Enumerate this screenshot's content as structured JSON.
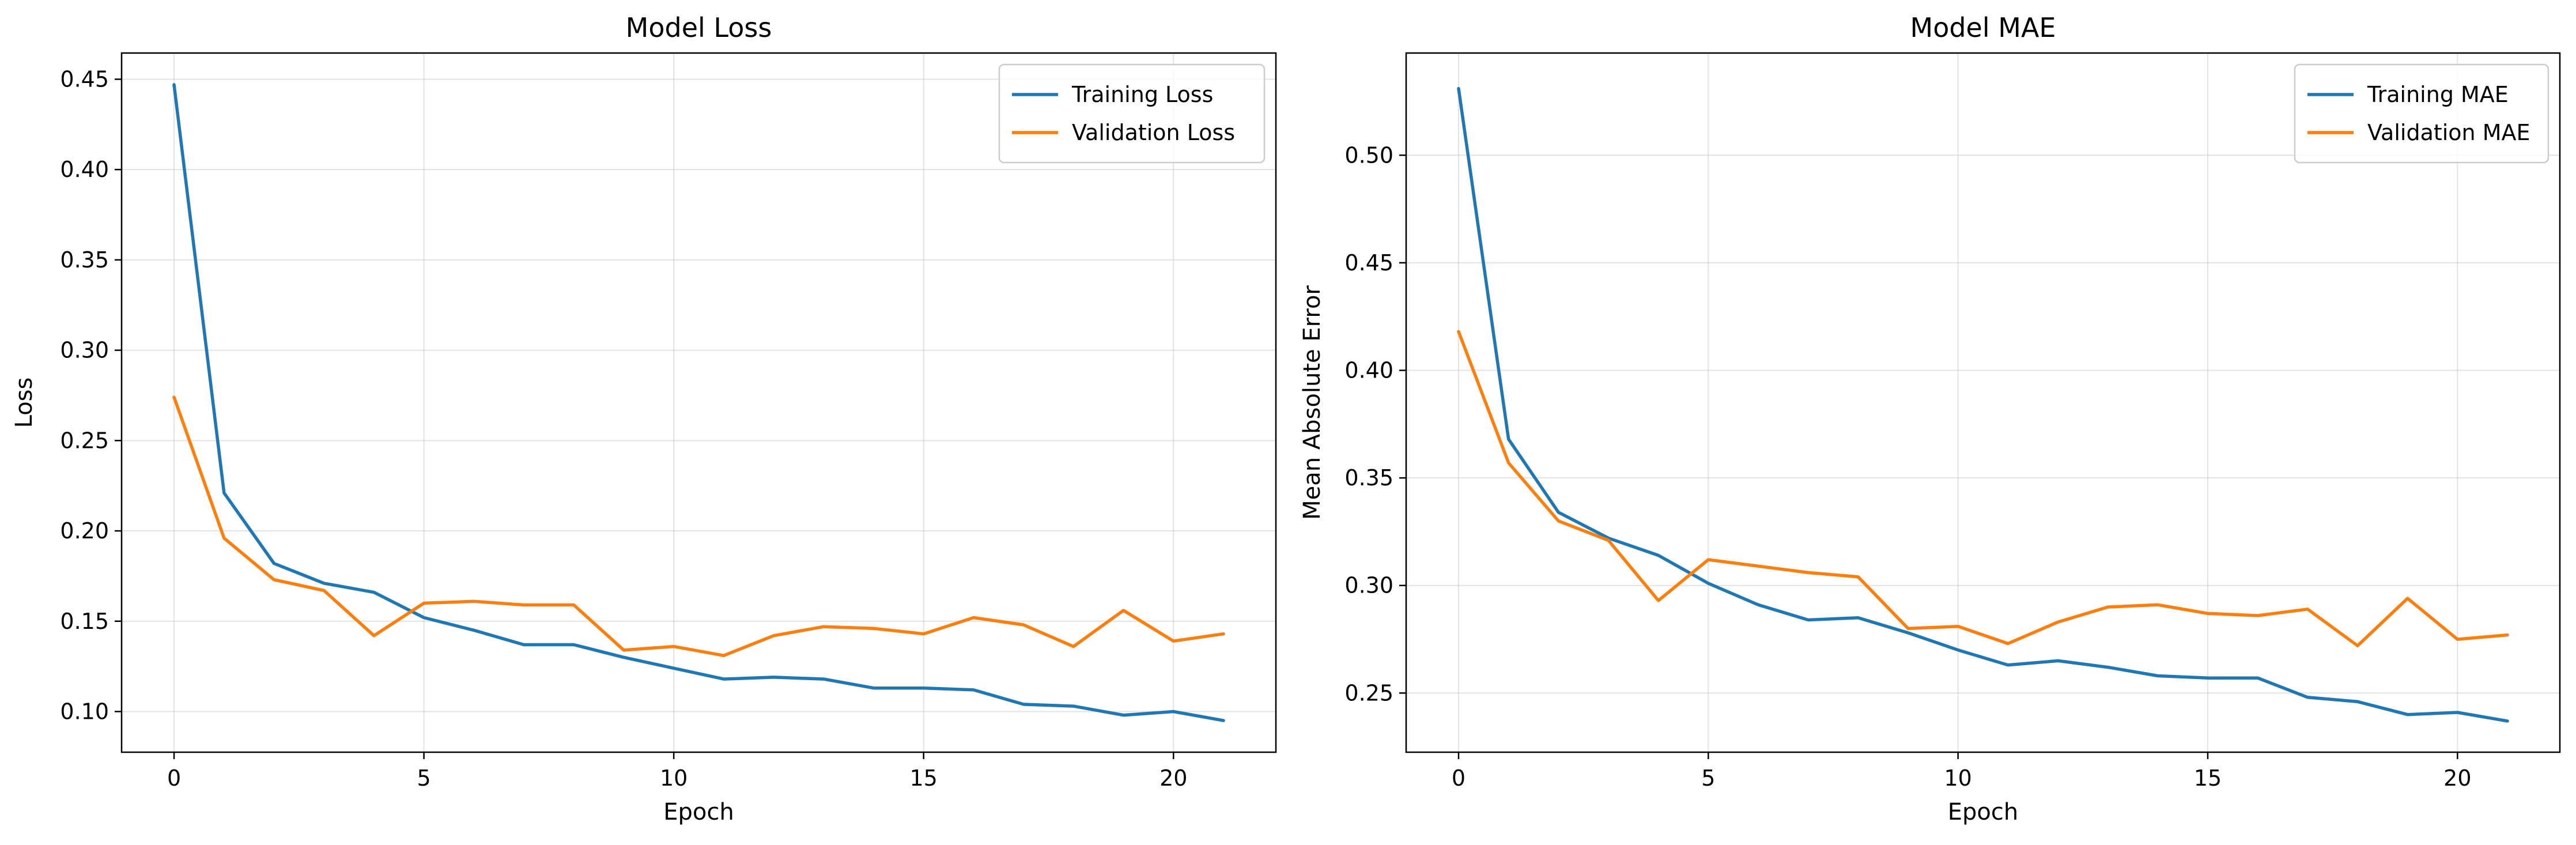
{
  "chart_data": [
    {
      "type": "line",
      "title": "Model Loss",
      "xlabel": "Epoch",
      "ylabel": "Loss",
      "xlim": [
        -1.05,
        22.05
      ],
      "ylim": [
        0.0775,
        0.4645
      ],
      "xticks": [
        0,
        5,
        10,
        15,
        20
      ],
      "yticks": [
        0.1,
        0.15,
        0.2,
        0.25,
        0.3,
        0.35,
        0.4,
        0.45
      ],
      "ytick_decimals": 2,
      "grid": true,
      "legend_position": "top-right",
      "x": [
        0,
        1,
        2,
        3,
        4,
        5,
        6,
        7,
        8,
        9,
        10,
        11,
        12,
        13,
        14,
        15,
        16,
        17,
        18,
        19,
        20,
        21
      ],
      "series": [
        {
          "name": "Training Loss",
          "color": "#1f77b4",
          "values": [
            0.447,
            0.221,
            0.182,
            0.171,
            0.166,
            0.152,
            0.145,
            0.137,
            0.137,
            0.13,
            0.124,
            0.118,
            0.119,
            0.118,
            0.113,
            0.113,
            0.112,
            0.104,
            0.103,
            0.098,
            0.1,
            0.095
          ]
        },
        {
          "name": "Validation Loss",
          "color": "#ff7f0e",
          "values": [
            0.274,
            0.196,
            0.173,
            0.167,
            0.142,
            0.16,
            0.161,
            0.159,
            0.159,
            0.134,
            0.136,
            0.131,
            0.142,
            0.147,
            0.146,
            0.143,
            0.152,
            0.148,
            0.136,
            0.156,
            0.139,
            0.143
          ]
        }
      ]
    },
    {
      "type": "line",
      "title": "Model MAE",
      "xlabel": "Epoch",
      "ylabel": "Mean Absolute Error",
      "xlim": [
        -1.05,
        22.05
      ],
      "ylim": [
        0.2225,
        0.5475
      ],
      "xticks": [
        0,
        5,
        10,
        15,
        20
      ],
      "yticks": [
        0.25,
        0.3,
        0.35,
        0.4,
        0.45,
        0.5
      ],
      "ytick_decimals": 2,
      "grid": true,
      "legend_position": "top-right",
      "x": [
        0,
        1,
        2,
        3,
        4,
        5,
        6,
        7,
        8,
        9,
        10,
        11,
        12,
        13,
        14,
        15,
        16,
        17,
        18,
        19,
        20,
        21
      ],
      "series": [
        {
          "name": "Training MAE",
          "color": "#1f77b4",
          "values": [
            0.531,
            0.368,
            0.334,
            0.322,
            0.314,
            0.301,
            0.291,
            0.284,
            0.285,
            0.278,
            0.27,
            0.263,
            0.265,
            0.262,
            0.258,
            0.257,
            0.257,
            0.248,
            0.246,
            0.24,
            0.241,
            0.237
          ]
        },
        {
          "name": "Validation MAE",
          "color": "#ff7f0e",
          "values": [
            0.418,
            0.357,
            0.33,
            0.321,
            0.293,
            0.312,
            0.309,
            0.306,
            0.304,
            0.28,
            0.281,
            0.273,
            0.283,
            0.29,
            0.291,
            0.287,
            0.286,
            0.289,
            0.272,
            0.294,
            0.275,
            0.277
          ]
        }
      ]
    }
  ]
}
